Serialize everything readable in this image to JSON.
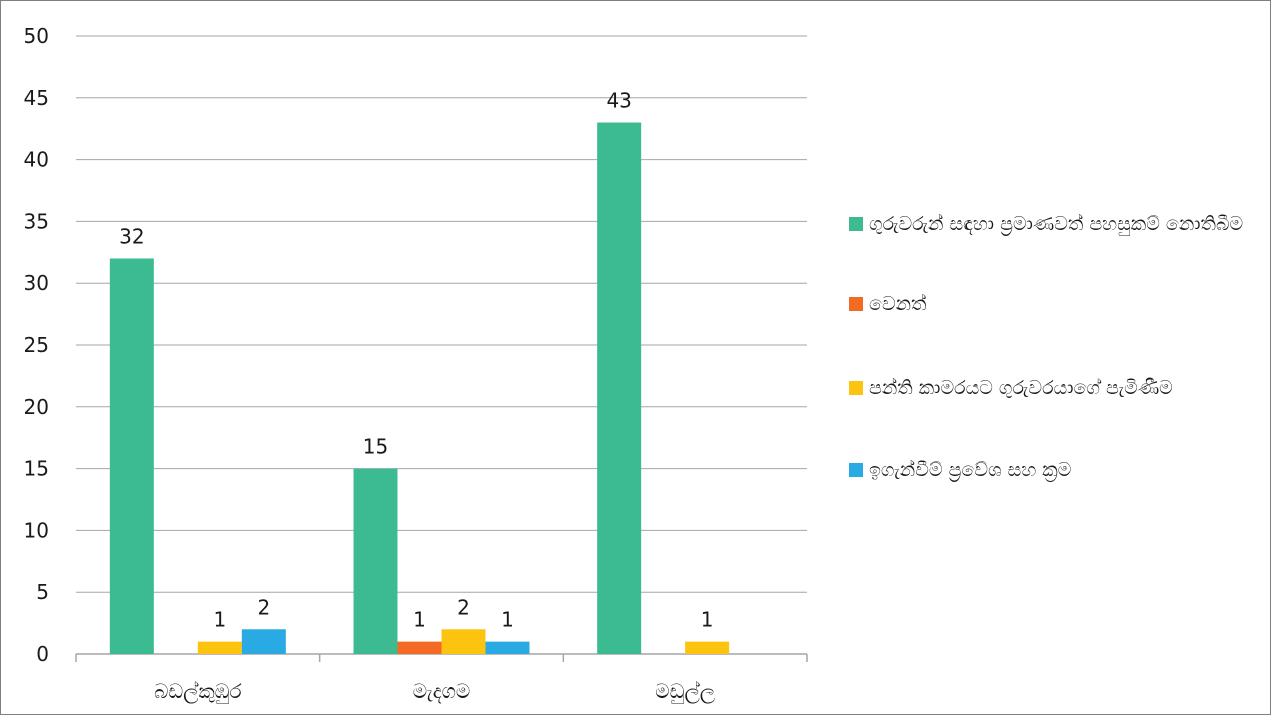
{
  "chart_data": {
    "type": "bar",
    "categories": [
      "බඩල්කුඹුර",
      "මැදගම",
      "මඩුල්ල"
    ],
    "series": [
      {
        "name": "ගුරුවරුන් සඳහා ප්‍රමාණවත් පහසුකම් නොතිබීම",
        "color": "#3cbb93",
        "values": [
          32,
          15,
          43
        ]
      },
      {
        "name": "වෙනත්",
        "color": "#f36a24",
        "values": [
          0,
          1,
          0
        ]
      },
      {
        "name": "පන්ති කාමරයට ගුරුවරයාගේ පැමිණීම",
        "color": "#fcc30f",
        "values": [
          1,
          2,
          1
        ]
      },
      {
        "name": "ඉගැන්වීම් ප්‍රවේශ සහ ක්‍රම",
        "color": "#29aae2",
        "values": [
          2,
          1,
          0
        ]
      }
    ],
    "ylim": [
      0,
      50
    ],
    "yticks": [
      0,
      5,
      10,
      15,
      20,
      25,
      30,
      35,
      40,
      45,
      50
    ],
    "grid": true,
    "legend_position": "right",
    "data_labels": true,
    "title": "",
    "xlabel": "",
    "ylabel": ""
  }
}
